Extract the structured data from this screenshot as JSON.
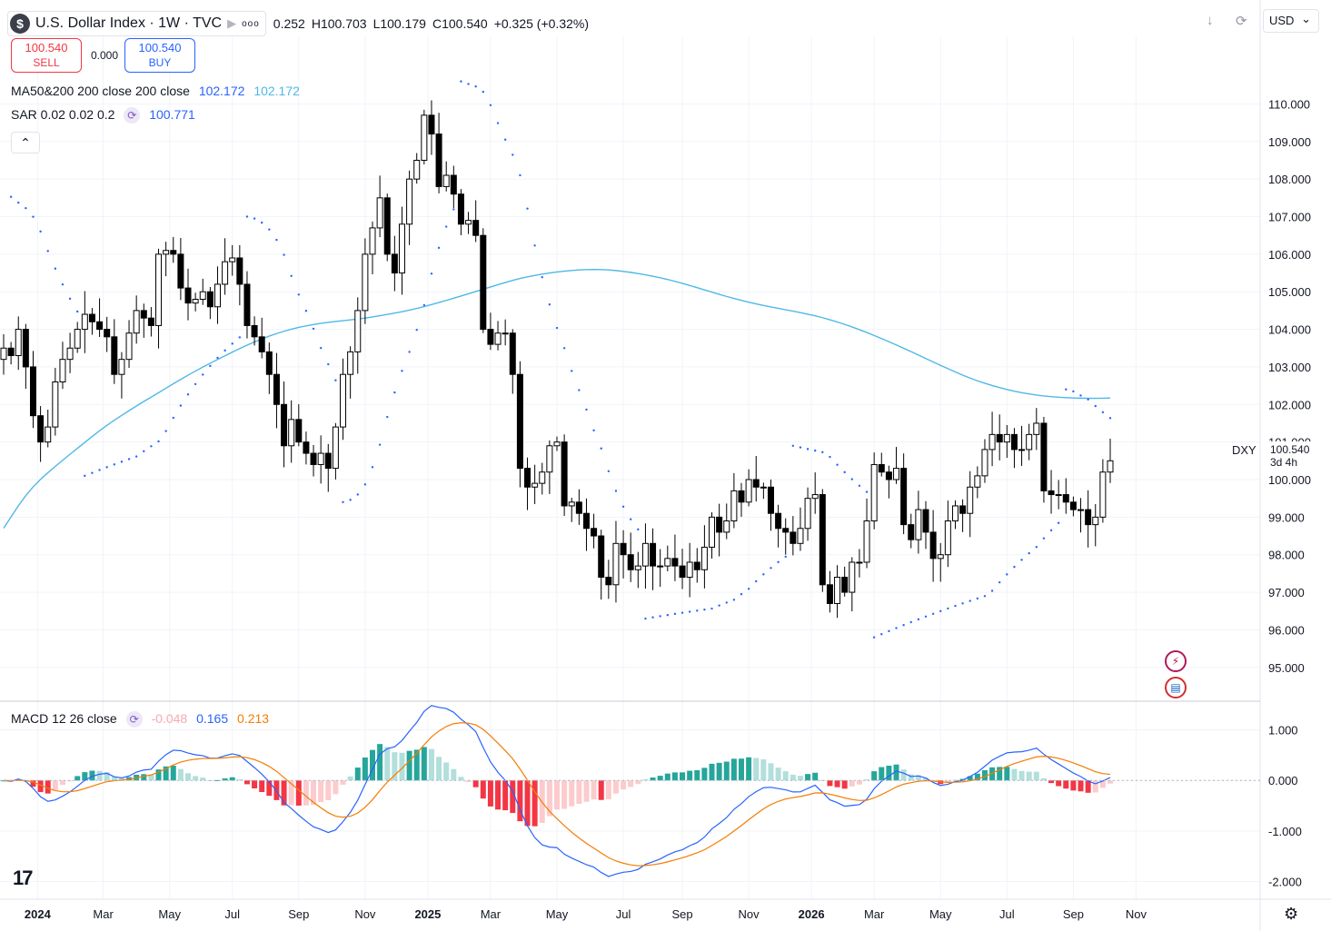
{
  "header": {
    "symbol_title": "U.S. Dollar Index · 1W · TVC",
    "logo_glyph": "$",
    "more_glyph": "ooo",
    "ohlc": [
      {
        "label": "",
        "value": "0.252"
      },
      {
        "label": "H",
        "value": "100.703"
      },
      {
        "label": "L",
        "value": "100.179"
      },
      {
        "label": "C",
        "value": "100.540"
      },
      {
        "label": "",
        "value": "+0.325 (+0.32%)"
      }
    ],
    "currency": "USD",
    "currency_arrow": "⌄"
  },
  "trade": {
    "sell_price": "100.540",
    "sell_label": "SELL",
    "buy_price": "100.540",
    "buy_label": "BUY",
    "spread": "0.000"
  },
  "indicators": {
    "ma_label": "MA50&200 200 close 200 close",
    "ma_v1": "102.172",
    "ma_v2": "102.172",
    "sar_label": "SAR 0.02 0.02 0.2",
    "sar_value": "100.771",
    "macd_label": "MACD 12 26 close",
    "macd_hist": "-0.048",
    "macd_line": "0.165",
    "macd_signal": "0.213"
  },
  "collapse_glyph": "⌃",
  "price_tag": {
    "symbol": "DXY",
    "price": "100.540",
    "countdown": "3d 4h"
  },
  "colors": {
    "up_body": "#ffffff",
    "down_body": "#000000",
    "wick": "#000000",
    "ma": "#4fb8e8",
    "sar": "#2962ff",
    "macd_line": "#2962ff",
    "signal": "#f57c00",
    "hist_pos_strong": "#26a69a",
    "hist_pos_weak": "#b2dfdb",
    "hist_neg_strong": "#f23645",
    "hist_neg_weak": "#fccbcd",
    "grid": "#f0f3fa"
  },
  "chart_data": {
    "type": "candlestick",
    "timeframe": "1W",
    "price_axis": {
      "ticks": [
        95,
        96,
        97,
        98,
        99,
        100,
        101,
        102,
        103,
        104,
        105,
        106,
        107,
        108,
        109,
        110
      ],
      "range": [
        94.1,
        111.8
      ]
    },
    "macd_axis": {
      "ticks": [
        -2,
        -1,
        0,
        1
      ],
      "range": [
        -2.35,
        1.55
      ]
    },
    "time_axis": [
      {
        "label": "2024",
        "idx": 4.6,
        "bold": true
      },
      {
        "label": "Mar",
        "idx": 13.5
      },
      {
        "label": "May",
        "idx": 22.5
      },
      {
        "label": "Jul",
        "idx": 31.0
      },
      {
        "label": "Sep",
        "idx": 40.0
      },
      {
        "label": "Nov",
        "idx": 49.0
      },
      {
        "label": "2025",
        "idx": 57.5,
        "bold": true
      },
      {
        "label": "Mar",
        "idx": 66.0
      },
      {
        "label": "May",
        "idx": 75.0
      },
      {
        "label": "Jul",
        "idx": 84.0
      },
      {
        "label": "Sep",
        "idx": 92.0
      },
      {
        "label": "Nov",
        "idx": 101.0
      },
      {
        "label": "2026",
        "idx": 109.5,
        "bold": true
      },
      {
        "label": "Mar",
        "idx": 118.0
      },
      {
        "label": "May",
        "idx": 127.0
      },
      {
        "label": "Jul",
        "idx": 136.0
      },
      {
        "label": "Sep",
        "idx": 145.0
      },
      {
        "label": "Nov",
        "idx": 153.5
      }
    ],
    "close_series": [
      103.5,
      103.3,
      104.0,
      103.0,
      101.7,
      101.0,
      101.4,
      102.6,
      103.2,
      103.5,
      104.0,
      104.4,
      104.2,
      104.0,
      103.8,
      102.8,
      103.2,
      103.9,
      104.5,
      104.3,
      104.1,
      106.0,
      106.1,
      106.0,
      105.1,
      104.7,
      104.8,
      105.0,
      104.6,
      105.2,
      105.8,
      105.9,
      105.2,
      104.1,
      103.8,
      103.4,
      102.8,
      102.0,
      100.9,
      101.6,
      101.0,
      100.7,
      100.4,
      100.7,
      100.3,
      101.4,
      102.8,
      103.4,
      104.5,
      106.0,
      106.7,
      107.5,
      106.0,
      105.5,
      106.8,
      108.0,
      108.5,
      109.7,
      109.2,
      107.8,
      108.1,
      107.6,
      106.8,
      106.9,
      106.5,
      104.0,
      103.6,
      103.9,
      103.9,
      102.8,
      100.3,
      99.8,
      99.9,
      100.2,
      100.9,
      101.0,
      99.3,
      99.4,
      99.1,
      98.7,
      98.5,
      97.4,
      97.2,
      98.3,
      98.0,
      97.6,
      97.7,
      98.3,
      97.7,
      97.7,
      97.9,
      97.7,
      97.4,
      97.8,
      97.6,
      98.2,
      99.0,
      98.6,
      98.9,
      99.7,
      99.4,
      100.0,
      99.8,
      99.8,
      99.1,
      98.7,
      98.6,
      98.3,
      98.7,
      99.5,
      99.6,
      97.2,
      96.7,
      97.4,
      97.0,
      97.8,
      97.8,
      98.9,
      100.4,
      100.2,
      100.0,
      100.3,
      98.8,
      98.4,
      99.2,
      98.6,
      97.9,
      98.0,
      98.9,
      99.3,
      99.1,
      99.8,
      100.1,
      100.8,
      101.2,
      101.0,
      101.2,
      100.8,
      100.8,
      101.2,
      101.5,
      99.7,
      99.6,
      99.6,
      99.4,
      99.2,
      99.2,
      98.8,
      99.0,
      100.2,
      100.5
    ],
    "series": [
      {
        "name": "MA50&200 200 close 200 close",
        "type": "line"
      },
      {
        "name": "SAR 0.02 0.02 0.2",
        "type": "points"
      },
      {
        "name": "MACD 12 26 close",
        "type": "macd"
      }
    ],
    "last_values": {
      "close": 100.54,
      "ma": 102.172,
      "sar": 100.771,
      "macd_hist": -0.048,
      "macd": 0.165,
      "signal": 0.213
    }
  }
}
